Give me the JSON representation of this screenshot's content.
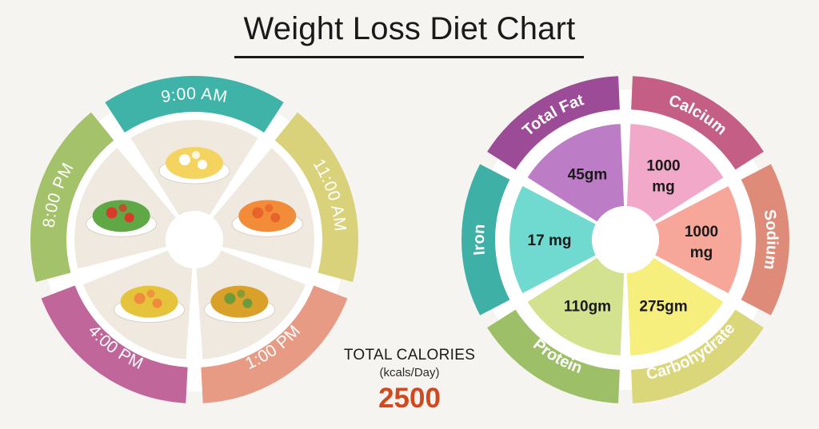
{
  "title": "Weight Loss Diet Chart",
  "meals": [
    {
      "time": "9:00 AM",
      "color": "#3fb3a8",
      "food": "boiled-eggs-icon"
    },
    {
      "time": "11:00 AM",
      "color": "#dad27a",
      "food": "papaya-icon"
    },
    {
      "time": "1:00 PM",
      "color": "#e79a84",
      "food": "lentil-soup-icon"
    },
    {
      "time": "4:00 PM",
      "color": "#c0669a",
      "food": "vegetable-soup-icon"
    },
    {
      "time": "8:00 PM",
      "color": "#a3c26a",
      "food": "salad-icon"
    }
  ],
  "calories": {
    "label": "TOTAL CALORIES",
    "unit": "(kcals/Day)",
    "value": "2500",
    "value_color": "#d14a1f"
  },
  "nutrients": [
    {
      "name": "Total Fat",
      "value": "45gm",
      "label_color": "#9c4c97",
      "fill_color": "#bd7dc6"
    },
    {
      "name": "Calcium",
      "value": "1000 mg",
      "label_color": "#c45e84",
      "fill_color": "#f2a8c8"
    },
    {
      "name": "Sodium",
      "value": "1000 mg",
      "label_color": "#df8b79",
      "fill_color": "#f7a79a"
    },
    {
      "name": "Carbohydrate",
      "value": "275gm",
      "label_color": "#dad67a",
      "fill_color": "#f6ee7d"
    },
    {
      "name": "Protein",
      "value": "110gm",
      "label_color": "#9dbf68",
      "fill_color": "#d2e28e"
    },
    {
      "name": "Iron",
      "value": "17 mg",
      "label_color": "#3fb0a6",
      "fill_color": "#71dad0"
    }
  ]
}
